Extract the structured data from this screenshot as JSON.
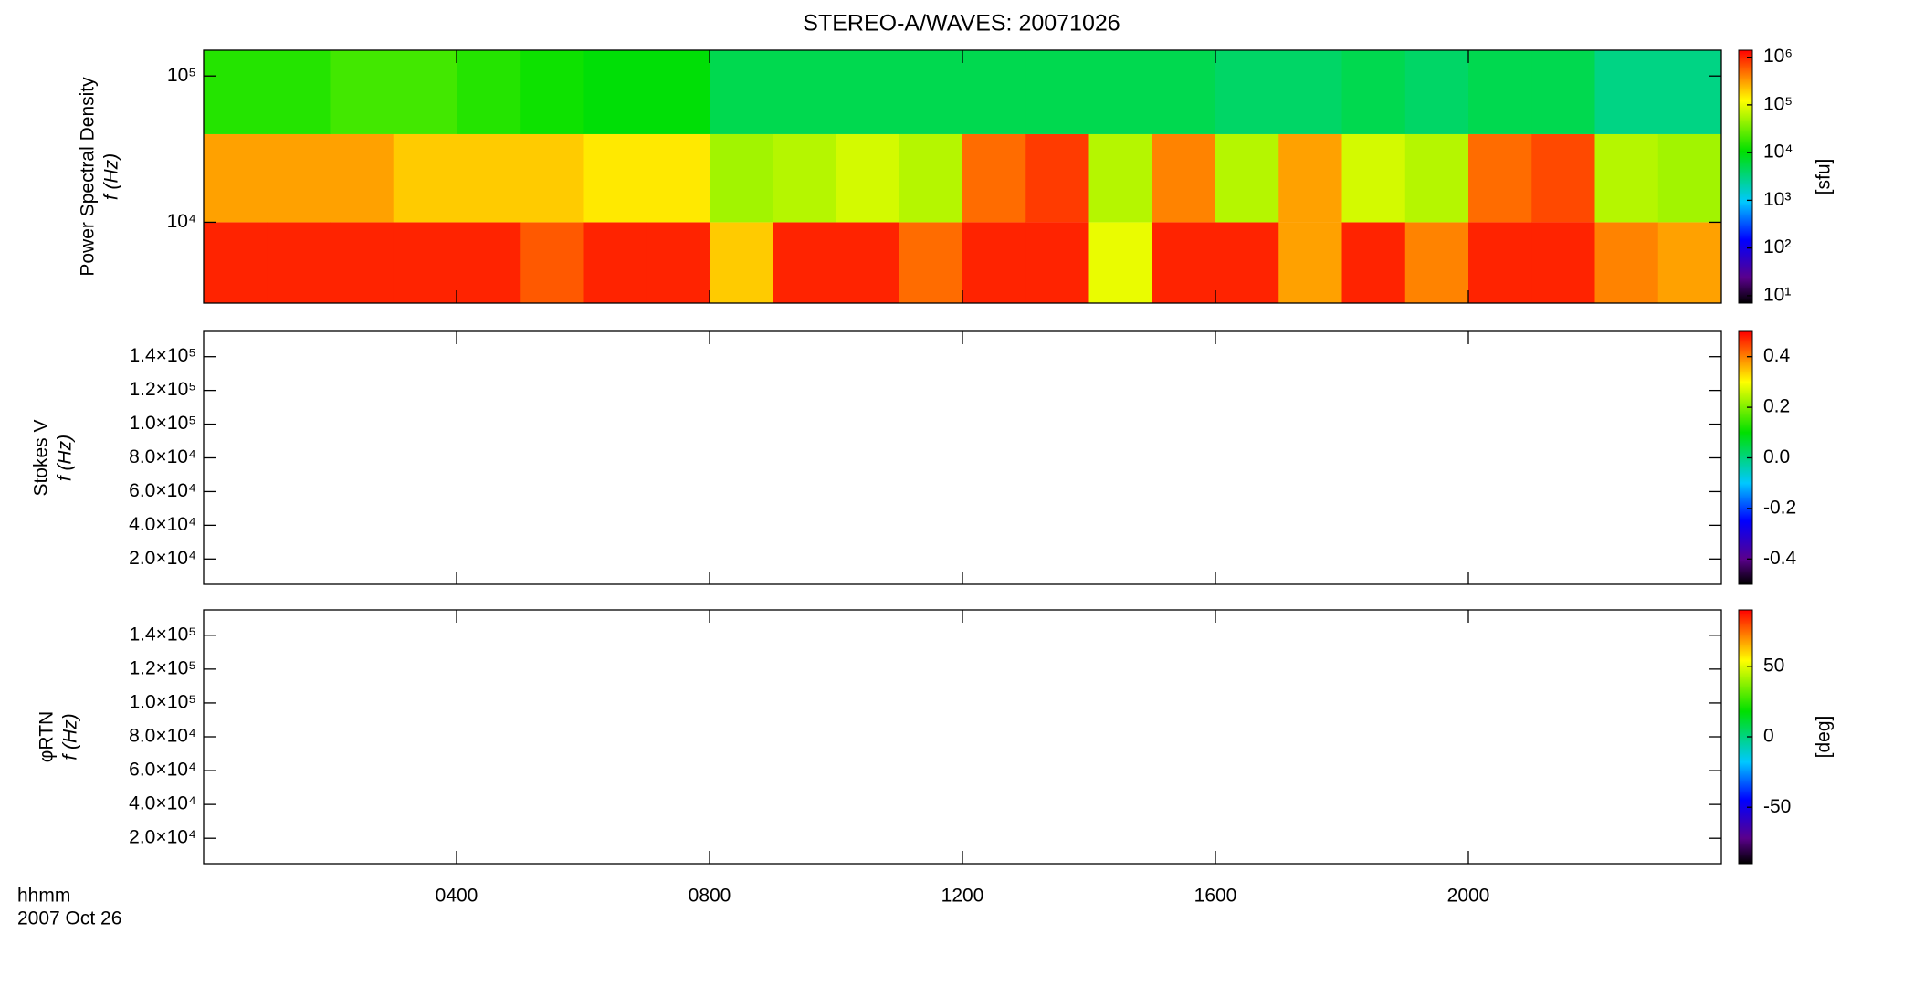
{
  "chart_data": [
    {
      "type": "heatmap",
      "title": "STEREO-A/WAVES: 20071026",
      "ylabel": "Power Spectral Density",
      "ylabel2": "f (Hz)",
      "ylog": true,
      "ylim": [
        2800,
        150000
      ],
      "yticks": [
        {
          "value": 10000,
          "label": "10⁴"
        },
        {
          "value": 100000,
          "label": "10⁵"
        }
      ],
      "x": [
        0,
        1,
        2,
        3,
        4,
        5,
        6,
        7,
        8,
        9,
        10,
        11,
        12,
        13,
        14,
        15,
        16,
        17,
        18,
        19,
        20,
        21,
        22,
        23,
        24
      ],
      "y": [
        2800,
        10000,
        40000,
        150000
      ],
      "z": [
        [
          1000000,
          1000000,
          1000000,
          1000000,
          1000000,
          600000,
          1000000,
          1000000,
          200000,
          1000000,
          1000000,
          500000,
          1000000,
          1000000,
          100000,
          1000000,
          1000000,
          300000,
          1000000,
          400000,
          1000000,
          1000000,
          400000,
          300000
        ],
        [
          300000,
          300000,
          300000,
          200000,
          200000,
          200000,
          150000,
          150000,
          50000,
          60000,
          80000,
          60000,
          500000,
          800000,
          60000,
          400000,
          60000,
          300000,
          80000,
          60000,
          500000,
          700000,
          60000,
          50000
        ],
        [
          15000,
          15000,
          20000,
          20000,
          15000,
          12000,
          10000,
          10000,
          5000,
          5000,
          5000,
          5000,
          5000,
          5000,
          5000,
          5000,
          4000,
          4000,
          5000,
          4000,
          5000,
          5000,
          3000,
          3000
        ]
      ],
      "clog": true,
      "clim": [
        7,
        1400000
      ],
      "clabel": "[sfu]",
      "cticks": [
        {
          "value": 10,
          "label": "10¹"
        },
        {
          "value": 100,
          "label": "10²"
        },
        {
          "value": 1000,
          "label": "10³"
        },
        {
          "value": 10000,
          "label": "10⁴"
        },
        {
          "value": 100000,
          "label": "10⁵"
        },
        {
          "value": 1000000,
          "label": "10⁶"
        }
      ]
    },
    {
      "type": "heatmap",
      "ylabel": "Stokes V",
      "ylabel2": "f (Hz)",
      "ylim": [
        5000,
        155000
      ],
      "yticks": [
        {
          "value": 20000,
          "label": "2.0×10⁴"
        },
        {
          "value": 40000,
          "label": "4.0×10⁴"
        },
        {
          "value": 60000,
          "label": "6.0×10⁴"
        },
        {
          "value": 80000,
          "label": "8.0×10⁴"
        },
        {
          "value": 100000,
          "label": "1.0×10⁵"
        },
        {
          "value": 120000,
          "label": "1.2×10⁵"
        },
        {
          "value": 140000,
          "label": "1.4×10⁵"
        }
      ],
      "clim": [
        -0.5,
        0.5
      ],
      "cticks": [
        -0.4,
        -0.2,
        {
          "value": 0,
          "label": "0.0"
        },
        0.2,
        0.4
      ]
    },
    {
      "type": "heatmap",
      "ylabel": "φRTN",
      "ylabel2": "f (Hz)",
      "ylim": [
        5000,
        155000
      ],
      "yticks": [
        {
          "value": 20000,
          "label": "2.0×10⁴"
        },
        {
          "value": 40000,
          "label": "4.0×10⁴"
        },
        {
          "value": 60000,
          "label": "6.0×10⁴"
        },
        {
          "value": 80000,
          "label": "8.0×10⁴"
        },
        {
          "value": 100000,
          "label": "1.0×10⁵"
        },
        {
          "value": 120000,
          "label": "1.2×10⁵"
        },
        {
          "value": 140000,
          "label": "1.4×10⁵"
        }
      ],
      "clim": [
        -90,
        90
      ],
      "clabel": "[deg]",
      "cticks": [
        -50,
        0,
        50
      ],
      "xlim": [
        0,
        24
      ],
      "xticks": [
        {
          "value": 4,
          "label": "0400"
        },
        {
          "value": 8,
          "label": "0800"
        },
        {
          "value": 12,
          "label": "1200"
        },
        {
          "value": 16,
          "label": "1600"
        },
        {
          "value": 20,
          "label": "2000"
        }
      ],
      "xlabel": "hhmm",
      "date": "2007 Oct 26"
    }
  ]
}
